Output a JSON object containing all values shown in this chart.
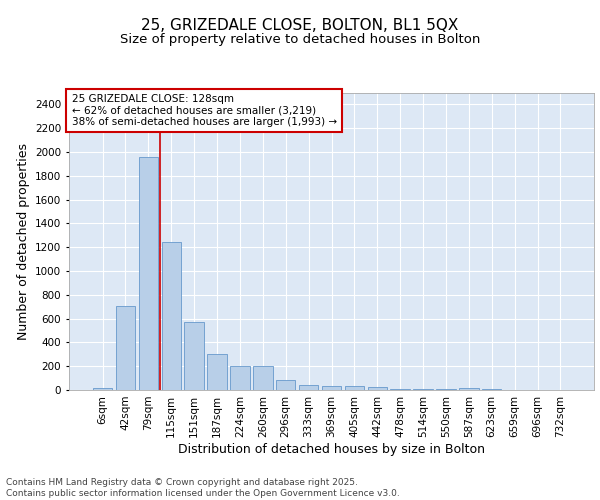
{
  "title1": "25, GRIZEDALE CLOSE, BOLTON, BL1 5QX",
  "title2": "Size of property relative to detached houses in Bolton",
  "xlabel": "Distribution of detached houses by size in Bolton",
  "ylabel": "Number of detached properties",
  "categories": [
    "6sqm",
    "42sqm",
    "79sqm",
    "115sqm",
    "151sqm",
    "187sqm",
    "224sqm",
    "260sqm",
    "296sqm",
    "333sqm",
    "369sqm",
    "405sqm",
    "442sqm",
    "478sqm",
    "514sqm",
    "550sqm",
    "587sqm",
    "623sqm",
    "659sqm",
    "696sqm",
    "732sqm"
  ],
  "values": [
    15,
    710,
    1960,
    1240,
    575,
    305,
    200,
    200,
    80,
    45,
    35,
    30,
    28,
    12,
    10,
    8,
    20,
    5,
    3,
    2,
    1
  ],
  "bar_color": "#b8cfe8",
  "bar_edgecolor": "#6699cc",
  "background_color": "#dde8f5",
  "grid_color": "#ffffff",
  "annotation_text": "25 GRIZEDALE CLOSE: 128sqm\n← 62% of detached houses are smaller (3,219)\n38% of semi-detached houses are larger (1,993) →",
  "annotation_box_facecolor": "#ffffff",
  "annotation_box_edgecolor": "#cc0000",
  "vline_color": "#cc0000",
  "vline_x_index": 2.5,
  "ylim": [
    0,
    2500
  ],
  "yticks": [
    0,
    200,
    400,
    600,
    800,
    1000,
    1200,
    1400,
    1600,
    1800,
    2000,
    2200,
    2400
  ],
  "footer": "Contains HM Land Registry data © Crown copyright and database right 2025.\nContains public sector information licensed under the Open Government Licence v3.0.",
  "title1_fontsize": 11,
  "title2_fontsize": 9.5,
  "tick_fontsize": 7.5,
  "ylabel_fontsize": 9,
  "xlabel_fontsize": 9,
  "annotation_fontsize": 7.5,
  "footer_fontsize": 6.5
}
